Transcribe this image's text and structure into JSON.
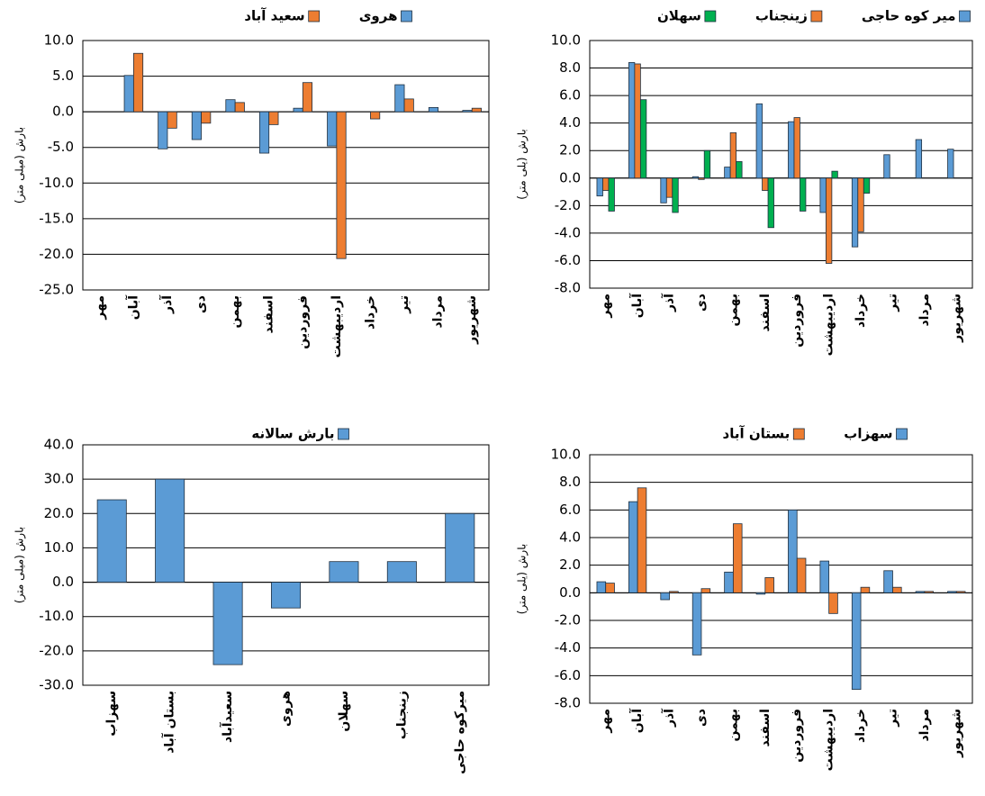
{
  "chart_data": [
    {
      "type": "bar",
      "legend": "top",
      "grid": true,
      "y_label": "بارش (میلی متر)",
      "categories": [
        "مهر",
        "آبان",
        "آذر",
        "دی",
        "بهمن",
        "اسفند",
        "فروردین",
        "اردیبهشت",
        "خرداد",
        "تیر",
        "مرداد",
        "شهریور"
      ],
      "series": [
        {
          "name": "هروی",
          "color": "#5b9bd5",
          "values": [
            0,
            5.1,
            -5.2,
            -3.9,
            1.7,
            -5.8,
            0.5,
            -4.8,
            0,
            3.8,
            0.6,
            0.2
          ]
        },
        {
          "name": "سعید آباد",
          "color": "#ed7d31",
          "values": [
            0,
            8.2,
            -2.3,
            -1.6,
            1.3,
            -1.8,
            4.1,
            -20.6,
            -1.0,
            1.8,
            0,
            0.5
          ]
        }
      ],
      "ylim": [
        -25,
        10
      ],
      "yticks": [
        {
          "value": -25,
          "label": "-25.0"
        },
        {
          "value": -20,
          "label": "-20.0"
        },
        {
          "value": -15,
          "label": "-15.0"
        },
        {
          "value": -10,
          "label": "-10.0"
        },
        {
          "value": -5,
          "label": "-5.0"
        },
        {
          "value": 0,
          "label": "0.0"
        },
        {
          "value": 5,
          "label": "5.0"
        },
        {
          "value": 10,
          "label": "10.0"
        }
      ]
    },
    {
      "type": "bar",
      "legend": "top",
      "grid": true,
      "y_label": "بارش (یلی متر)",
      "categories": [
        "مهر",
        "آبان",
        "آذر",
        "دی",
        "بهمن",
        "اسفند",
        "فروردین",
        "اردیبهشت",
        "خرداد",
        "تیر",
        "مرداد",
        "شهریور"
      ],
      "series": [
        {
          "name": "میر کوه حاجی",
          "color": "#5b9bd5",
          "values": [
            -1.3,
            8.4,
            -1.8,
            0.1,
            0.8,
            5.4,
            4.1,
            -2.5,
            -5.0,
            1.7,
            2.8,
            2.1
          ]
        },
        {
          "name": "زینجناب",
          "color": "#ed7d31",
          "values": [
            -0.9,
            8.3,
            -1.4,
            -0.1,
            3.3,
            -0.9,
            4.4,
            -6.2,
            -3.9,
            0,
            0,
            0
          ]
        },
        {
          "name": "سهلان",
          "color": "#00b050",
          "values": [
            -2.4,
            5.7,
            -2.5,
            2.0,
            1.2,
            -3.6,
            -2.4,
            0.5,
            -1.1,
            0,
            0,
            0
          ]
        }
      ],
      "ylim": [
        -8,
        10
      ],
      "yticks": [
        {
          "value": -8,
          "label": "-8.0"
        },
        {
          "value": -6,
          "label": "-6.0"
        },
        {
          "value": -4,
          "label": "-4.0"
        },
        {
          "value": -2,
          "label": "-2.0"
        },
        {
          "value": 0,
          "label": "0.0"
        },
        {
          "value": 2,
          "label": "2.0"
        },
        {
          "value": 4,
          "label": "4.0"
        },
        {
          "value": 6,
          "label": "6.0"
        },
        {
          "value": 8,
          "label": "8.0"
        },
        {
          "value": 10,
          "label": "10.0"
        }
      ]
    },
    {
      "type": "bar",
      "legend": "top",
      "grid": true,
      "y_label": "بارش (میلی متر)",
      "categories": [
        "سهزاب",
        "بستان آباد",
        "سعیدآباد",
        "هروی",
        "سهلان",
        "زینجناب",
        "میرکوه حاجی"
      ],
      "series": [
        {
          "name": "بارش سالانه",
          "color": "#5b9bd5",
          "values": [
            24,
            30,
            -24,
            -7.5,
            6,
            6,
            20
          ]
        }
      ],
      "ylim": [
        -30,
        40
      ],
      "yticks": [
        {
          "value": -30,
          "label": "-30.0"
        },
        {
          "value": -20,
          "label": "-20.0"
        },
        {
          "value": -10,
          "label": "-10.0"
        },
        {
          "value": 0,
          "label": "0.0"
        },
        {
          "value": 10,
          "label": "10.0"
        },
        {
          "value": 20,
          "label": "20.0"
        },
        {
          "value": 30,
          "label": "30.0"
        },
        {
          "value": 40,
          "label": "40.0"
        }
      ]
    },
    {
      "type": "bar",
      "legend": "top",
      "grid": true,
      "y_label": "بارش (یلی متر)",
      "categories": [
        "مهر",
        "آبان",
        "آذر",
        "دی",
        "بهمن",
        "اسفند",
        "فروردین",
        "اردیبهشت",
        "خرداد",
        "تیر",
        "مرداد",
        "شهریور"
      ],
      "series": [
        {
          "name": "سهزاب",
          "color": "#5b9bd5",
          "values": [
            0.8,
            6.6,
            -0.5,
            -4.5,
            1.5,
            -0.1,
            6.0,
            2.3,
            -7.0,
            1.6,
            0.1,
            0.1
          ]
        },
        {
          "name": "بستان آباد",
          "color": "#ed7d31",
          "values": [
            0.7,
            7.6,
            0.1,
            0.3,
            5.0,
            1.1,
            2.5,
            -1.5,
            0.4,
            0.4,
            0.1,
            0.1
          ]
        }
      ],
      "ylim": [
        -8,
        10
      ],
      "yticks": [
        {
          "value": -8,
          "label": "-8.0"
        },
        {
          "value": -6,
          "label": "-6.0"
        },
        {
          "value": -4,
          "label": "-4.0"
        },
        {
          "value": -2,
          "label": "-2.0"
        },
        {
          "value": 0,
          "label": "0.0"
        },
        {
          "value": 2,
          "label": "2.0"
        },
        {
          "value": 4,
          "label": "4.0"
        },
        {
          "value": 6,
          "label": "6.0"
        },
        {
          "value": 8,
          "label": "8.0"
        },
        {
          "value": 10,
          "label": "10.0"
        }
      ]
    }
  ]
}
